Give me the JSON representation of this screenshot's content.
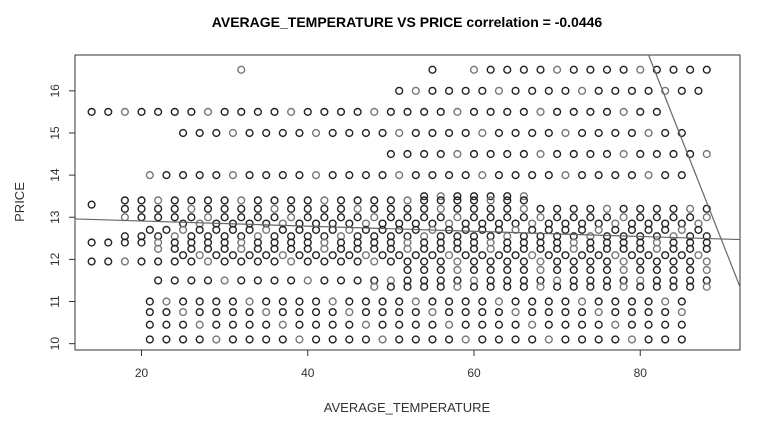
{
  "chart_data": {
    "type": "scatter",
    "title": "AVERAGE_TEMPERATURE VS PRICE correlation = -0.0446",
    "xlabel": "AVERAGE_TEMPERATURE",
    "ylabel": "PRICE",
    "xlim": [
      12,
      92
    ],
    "ylim": [
      9.85,
      16.85
    ],
    "x_ticks": [
      20,
      40,
      60,
      80
    ],
    "y_ticks": [
      10,
      11,
      12,
      13,
      14,
      15,
      16
    ],
    "grid": false,
    "marker": "open-circle",
    "price_bands": [
      {
        "y": 16.5,
        "x_from": 60,
        "x_to": 88,
        "step": 2,
        "extra": [
          32,
          55
        ]
      },
      {
        "y": 16.0,
        "x_from": 51,
        "x_to": 88,
        "step": 2
      },
      {
        "y": 15.5,
        "x_from": 14,
        "x_to": 82,
        "step": 2
      },
      {
        "y": 15.0,
        "x_from": 25,
        "x_to": 86,
        "step": 2
      },
      {
        "y": 14.5,
        "x_from": 50,
        "x_to": 88,
        "step": 2
      },
      {
        "y": 14.0,
        "x_from": 21,
        "x_to": 86,
        "step": 2
      },
      {
        "y": 13.5,
        "x_from": 54,
        "x_to": 66,
        "step": 2
      },
      {
        "y": 13.4,
        "x_from": 18,
        "x_to": 66,
        "step": 2
      },
      {
        "y": 13.3,
        "x_from": 14,
        "x_to": 14,
        "step": 2
      },
      {
        "y": 13.2,
        "x_from": 18,
        "x_to": 88,
        "step": 2
      },
      {
        "y": 13.0,
        "x_from": 18,
        "x_to": 88,
        "step": 2
      },
      {
        "y": 12.85,
        "x_from": 25,
        "x_to": 88,
        "step": 2
      },
      {
        "y": 12.7,
        "x_from": 21,
        "x_to": 88,
        "step": 2
      },
      {
        "y": 12.55,
        "x_from": 18,
        "x_to": 88,
        "step": 2
      },
      {
        "y": 12.4,
        "x_from": 14,
        "x_to": 88,
        "step": 2
      },
      {
        "y": 12.25,
        "x_from": 22,
        "x_to": 88,
        "step": 2
      },
      {
        "y": 12.1,
        "x_from": 25,
        "x_to": 88,
        "step": 2
      },
      {
        "y": 11.95,
        "x_from": 14,
        "x_to": 88,
        "step": 2
      },
      {
        "y": 11.75,
        "x_from": 52,
        "x_to": 88,
        "step": 2
      },
      {
        "y": 11.5,
        "x_from": 22,
        "x_to": 88,
        "step": 2
      },
      {
        "y": 11.35,
        "x_from": 48,
        "x_to": 88,
        "step": 2
      },
      {
        "y": 11.0,
        "x_from": 21,
        "x_to": 86,
        "step": 2
      },
      {
        "y": 10.75,
        "x_from": 21,
        "x_to": 86,
        "step": 2
      },
      {
        "y": 10.45,
        "x_from": 21,
        "x_to": 86,
        "step": 2
      },
      {
        "y": 10.1,
        "x_from": 21,
        "x_to": 86,
        "step": 2
      }
    ],
    "regression_line": {
      "x": [
        12,
        92
      ],
      "y": [
        12.96,
        12.47
      ]
    },
    "steep_line": {
      "x": [
        81,
        92
      ],
      "y": [
        16.85,
        11.35
      ]
    }
  }
}
